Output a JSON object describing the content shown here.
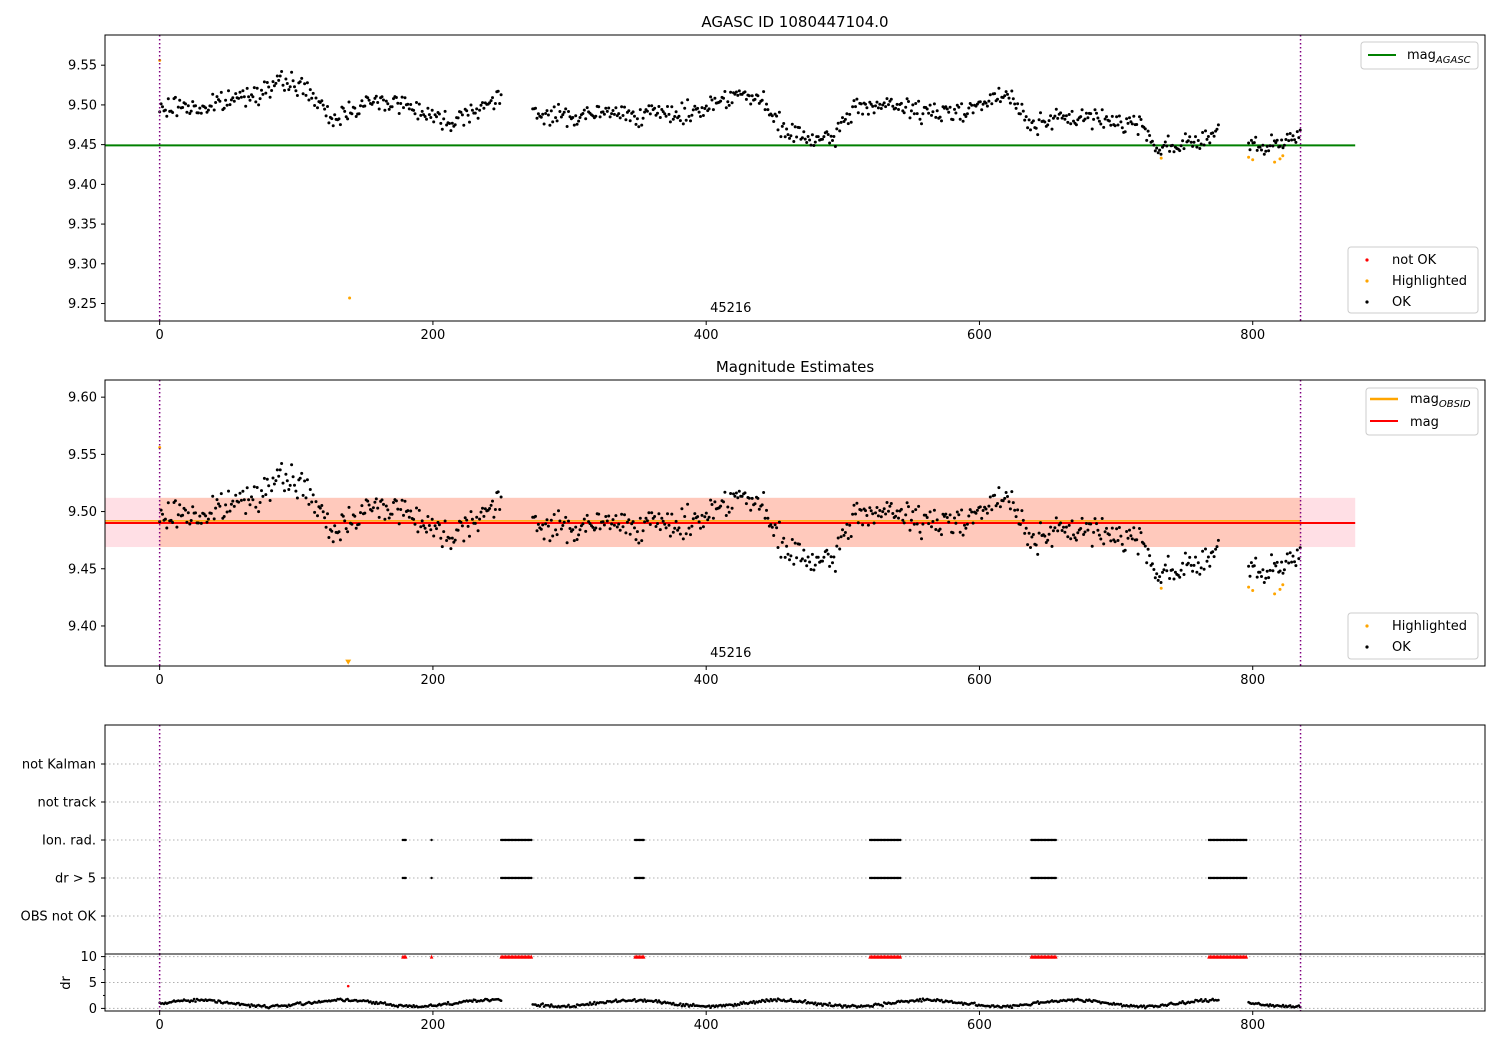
{
  "colors": {
    "not_ok": "#ff0000",
    "highlighted": "#ffa500",
    "ok": "#000000",
    "mag_agasc": "#008000",
    "mag_obsid": "#ffa500",
    "mag": "#ff0000",
    "band": "#ffc0cb",
    "obs_line": "#800080"
  },
  "chart_data": [
    {
      "type": "scatter",
      "title": "AGASC ID 1080447104.0",
      "xlim": [
        -40,
        970
      ],
      "ylim": [
        9.228,
        9.588
      ],
      "yticks": [
        "9.25",
        "9.30",
        "9.35",
        "9.40",
        "9.45",
        "9.50",
        "9.55"
      ],
      "xticks": [
        "0",
        "200",
        "400",
        "600",
        "800"
      ],
      "obsid_label": "45216",
      "obsid_label_x": 418,
      "obs_boundaries": [
        0,
        835
      ],
      "reference_lines": [
        {
          "name": "mag_AGASC",
          "y": 9.449,
          "x_range": [
            -40,
            875
          ]
        }
      ],
      "legend_lines": [
        {
          "label": "mag",
          "sub": "AGASC"
        }
      ],
      "legend_points": [
        "not OK",
        "Highlighted",
        "OK"
      ],
      "annotations": [],
      "series": [
        {
          "name": "OK",
          "description": "~800 OK points with mag between 9.44 and 9.54"
        },
        {
          "name": "Highlighted",
          "points": [
            [
              0,
              9.556
            ],
            [
              139,
              9.257
            ],
            [
              733,
              9.433
            ],
            [
              797,
              9.434
            ],
            [
              800,
              9.431
            ],
            [
              816,
              9.428
            ],
            [
              820,
              9.432
            ],
            [
              822,
              9.436
            ]
          ]
        },
        {
          "name": "not OK",
          "points": []
        }
      ]
    },
    {
      "type": "scatter",
      "title": "Magnitude Estimates",
      "xlim": [
        -40,
        970
      ],
      "ylim": [
        9.365,
        9.615
      ],
      "yticks": [
        "9.40",
        "9.45",
        "9.50",
        "9.55",
        "9.60"
      ],
      "xticks": [
        "0",
        "200",
        "400",
        "600",
        "800"
      ],
      "obsid_label": "45216",
      "obsid_label_x": 418,
      "obs_boundaries": [
        0,
        835
      ],
      "band": {
        "y_range": [
          9.469,
          9.512
        ],
        "x_range": [
          -40,
          875
        ]
      },
      "reference_lines": [
        {
          "name": "mag",
          "y": 9.49,
          "x_range": [
            -40,
            875
          ]
        },
        {
          "name": "mag_OBSID",
          "y": 9.491,
          "x_range": [
            -40,
            835
          ]
        }
      ],
      "legend_lines": [
        {
          "label": "mag",
          "sub": "OBSID"
        },
        {
          "label": "mag",
          "sub": ""
        }
      ],
      "legend_points": [
        "Highlighted",
        "OK"
      ],
      "annotations": [
        {
          "type": "down-triangle",
          "x": 138,
          "y": 9.368
        }
      ],
      "series": [
        {
          "name": "OK",
          "description": "~800 OK points with mag between 9.44 and 9.54"
        },
        {
          "name": "Highlighted",
          "points": [
            [
              0,
              9.556
            ],
            [
              733,
              9.433
            ],
            [
              797,
              9.434
            ],
            [
              800,
              9.431
            ],
            [
              816,
              9.428
            ],
            [
              820,
              9.432
            ],
            [
              822,
              9.436
            ]
          ]
        }
      ]
    },
    {
      "type": "scatter",
      "title": "",
      "xlim": [
        -40,
        970
      ],
      "categories": [
        "OBS not OK",
        "dr > 5",
        "Ion. rad.",
        "not track",
        "not Kalman"
      ],
      "obs_boundaries": [
        0,
        835
      ],
      "flag_clusters": [
        {
          "category": "dr > 5",
          "x_ranges": [
            [
              178,
              181
            ],
            [
              199,
              200
            ],
            [
              250,
              273
            ],
            [
              348,
              355
            ],
            [
              520,
              543
            ],
            [
              638,
              656
            ],
            [
              768,
              796
            ]
          ]
        },
        {
          "category": "Ion. rad.",
          "x_ranges": [
            [
              178,
              181
            ],
            [
              199,
              200
            ],
            [
              250,
              273
            ],
            [
              348,
              355
            ],
            [
              520,
              543
            ],
            [
              638,
              656
            ],
            [
              768,
              796
            ]
          ]
        }
      ]
    },
    {
      "type": "scatter",
      "title": "",
      "ylabel": "dr",
      "xlim": [
        -40,
        970
      ],
      "ylim": [
        -0.5,
        10.5
      ],
      "yticks": [
        "0",
        "5",
        "10"
      ],
      "xticks": [
        "0",
        "200",
        "400",
        "600",
        "800"
      ],
      "obs_boundaries": [
        0,
        835
      ],
      "threshold": 10,
      "clipped_points_x_ranges": [
        [
          178,
          181
        ],
        [
          199,
          200
        ],
        [
          250,
          273
        ],
        [
          348,
          355
        ],
        [
          520,
          543
        ],
        [
          638,
          656
        ],
        [
          768,
          796
        ]
      ],
      "outliers": [
        {
          "x": 138,
          "y": 4.3
        }
      ],
      "series": [
        {
          "name": "dr",
          "description": "~800 points with dr between 0 and 2.2"
        }
      ]
    }
  ]
}
